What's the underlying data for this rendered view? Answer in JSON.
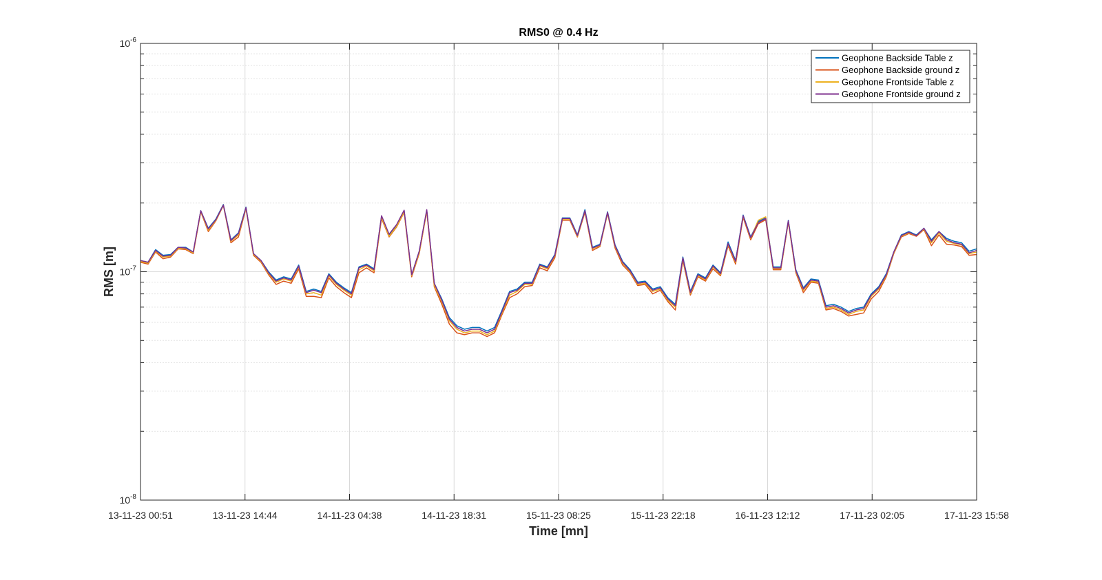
{
  "chart_data": {
    "type": "line",
    "title": "RMS0 @ 0.4 Hz",
    "xlabel": "Time [mn]",
    "ylabel": "RMS [m]",
    "yscale": "log",
    "ylim": [
      1e-08,
      1e-06
    ],
    "y_tick_labels": [
      {
        "base": "10",
        "exp": "-8",
        "value": 1e-08
      },
      {
        "base": "10",
        "exp": "-7",
        "value": 1e-07
      },
      {
        "base": "10",
        "exp": "-6",
        "value": 1e-06
      }
    ],
    "x_tick_labels": [
      "13-11-23 00:51",
      "13-11-23 14:44",
      "14-11-23 04:38",
      "14-11-23 18:31",
      "15-11-23 08:25",
      "15-11-23 22:18",
      "16-11-23 12:12",
      "17-11-23 02:05",
      "17-11-23 15:58"
    ],
    "grid": true,
    "legend_position": "top-right",
    "series": [
      {
        "name": "Geophone Backside Table z",
        "color": "#0072BD",
        "values": [
          1.12e-07,
          1.1e-07,
          1.25e-07,
          1.18e-07,
          1.19e-07,
          1.28e-07,
          1.28e-07,
          1.22e-07,
          1.85e-07,
          1.55e-07,
          1.7e-07,
          1.97e-07,
          1.38e-07,
          1.48e-07,
          1.92e-07,
          1.2e-07,
          1.12e-07,
          1e-07,
          9.2e-08,
          9.5e-08,
          9.3e-08,
          1.07e-07,
          8.2e-08,
          8.4e-08,
          8.2e-08,
          9.8e-08,
          9e-08,
          8.5e-08,
          8.1e-08,
          1.05e-07,
          1.08e-07,
          1.03e-07,
          1.75e-07,
          1.45e-07,
          1.6e-07,
          1.85e-07,
          9.7e-08,
          1.23e-07,
          1.86e-07,
          8.9e-08,
          7.6e-08,
          6.3e-08,
          5.8e-08,
          5.6e-08,
          5.7e-08,
          5.7e-08,
          5.5e-08,
          5.7e-08,
          6.8e-08,
          8.2e-08,
          8.4e-08,
          9e-08,
          9e-08,
          1.08e-07,
          1.05e-07,
          1.19e-07,
          1.72e-07,
          1.72e-07,
          1.45e-07,
          1.87e-07,
          1.28e-07,
          1.32e-07,
          1.83e-07,
          1.31e-07,
          1.11e-07,
          1.02e-07,
          9e-08,
          9.1e-08,
          8.4e-08,
          8.6e-08,
          7.7e-08,
          7.2e-08,
          1.16e-07,
          8.2e-08,
          9.8e-08,
          9.4e-08,
          1.07e-07,
          9.9e-08,
          1.35e-07,
          1.12e-07,
          1.77e-07,
          1.42e-07,
          1.66e-07,
          1.72e-07,
          1.05e-07,
          1.05e-07,
          1.68e-07,
          1.02e-07,
          8.5e-08,
          9.3e-08,
          9.2e-08,
          7.1e-08,
          7.2e-08,
          7e-08,
          6.7e-08,
          6.9e-08,
          7e-08,
          8e-08,
          8.6e-08,
          9.8e-08,
          1.22e-07,
          1.45e-07,
          1.5e-07,
          1.45e-07,
          1.55e-07,
          1.38e-07,
          1.5e-07,
          1.4e-07,
          1.36e-07,
          1.34e-07,
          1.23e-07,
          1.26e-07
        ]
      },
      {
        "name": "Geophone Backside ground z",
        "color": "#D95319",
        "values": [
          1.1e-07,
          1.08e-07,
          1.22e-07,
          1.14e-07,
          1.16e-07,
          1.26e-07,
          1.25e-07,
          1.2e-07,
          1.83e-07,
          1.5e-07,
          1.67e-07,
          1.95e-07,
          1.34e-07,
          1.42e-07,
          1.89e-07,
          1.18e-07,
          1.1e-07,
          9.7e-08,
          8.8e-08,
          9.1e-08,
          8.9e-08,
          1.03e-07,
          7.8e-08,
          7.8e-08,
          7.7e-08,
          9.4e-08,
          8.6e-08,
          8.1e-08,
          7.7e-08,
          9.9e-08,
          1.04e-07,
          9.9e-08,
          1.71e-07,
          1.42e-07,
          1.57e-07,
          1.82e-07,
          9.5e-08,
          1.2e-07,
          1.84e-07,
          8.6e-08,
          7.2e-08,
          5.9e-08,
          5.4e-08,
          5.3e-08,
          5.4e-08,
          5.4e-08,
          5.2e-08,
          5.4e-08,
          6.5e-08,
          7.7e-08,
          8e-08,
          8.6e-08,
          8.7e-08,
          1.04e-07,
          1.01e-07,
          1.15e-07,
          1.68e-07,
          1.68e-07,
          1.42e-07,
          1.82e-07,
          1.24e-07,
          1.29e-07,
          1.8e-07,
          1.27e-07,
          1.07e-07,
          9.9e-08,
          8.7e-08,
          8.8e-08,
          8e-08,
          8.3e-08,
          7.4e-08,
          6.8e-08,
          1.12e-07,
          7.9e-08,
          9.5e-08,
          9.1e-08,
          1.03e-07,
          9.6e-08,
          1.3e-07,
          1.08e-07,
          1.73e-07,
          1.38e-07,
          1.62e-07,
          1.69e-07,
          1.02e-07,
          1.02e-07,
          1.65e-07,
          9.9e-08,
          8.1e-08,
          9e-08,
          8.9e-08,
          6.8e-08,
          6.9e-08,
          6.7e-08,
          6.4e-08,
          6.5e-08,
          6.6e-08,
          7.6e-08,
          8.2e-08,
          9.5e-08,
          1.2e-07,
          1.42e-07,
          1.47e-07,
          1.43e-07,
          1.53e-07,
          1.3e-07,
          1.45e-07,
          1.32e-07,
          1.31e-07,
          1.29e-07,
          1.18e-07,
          1.19e-07
        ]
      },
      {
        "name": "Geophone Frontside Table z",
        "color": "#EDB120",
        "values": [
          1.11e-07,
          1.09e-07,
          1.23e-07,
          1.16e-07,
          1.17e-07,
          1.27e-07,
          1.26e-07,
          1.21e-07,
          1.84e-07,
          1.52e-07,
          1.68e-07,
          1.96e-07,
          1.36e-07,
          1.45e-07,
          1.9e-07,
          1.19e-07,
          1.11e-07,
          9.8e-08,
          9e-08,
          9.3e-08,
          9.1e-08,
          1.05e-07,
          8e-08,
          8.1e-08,
          7.9e-08,
          9.6e-08,
          8.8e-08,
          8.3e-08,
          7.9e-08,
          1.02e-07,
          1.06e-07,
          1.01e-07,
          1.73e-07,
          1.43e-07,
          1.58e-07,
          1.83e-07,
          9.6e-08,
          1.21e-07,
          1.85e-07,
          8.7e-08,
          7.4e-08,
          6.1e-08,
          5.6e-08,
          5.4e-08,
          5.5e-08,
          5.5e-08,
          5.3e-08,
          5.5e-08,
          6.6e-08,
          7.9e-08,
          8.2e-08,
          8.8e-08,
          8.8e-08,
          1.06e-07,
          1.03e-07,
          1.17e-07,
          1.7e-07,
          1.7e-07,
          1.43e-07,
          1.84e-07,
          1.26e-07,
          1.3e-07,
          1.81e-07,
          1.29e-07,
          1.09e-07,
          1e-07,
          8.8e-08,
          8.9e-08,
          8.2e-08,
          8.4e-08,
          7.5e-08,
          7e-08,
          1.14e-07,
          8e-08,
          9.6e-08,
          9.2e-08,
          1.05e-07,
          9.7e-08,
          1.32e-07,
          1.1e-07,
          1.75e-07,
          1.4e-07,
          1.68e-07,
          1.74e-07,
          1.03e-07,
          1.03e-07,
          1.66e-07,
          1e-07,
          8.3e-08,
          9.1e-08,
          9e-08,
          6.9e-08,
          7e-08,
          6.8e-08,
          6.5e-08,
          6.7e-08,
          6.8e-08,
          7.8e-08,
          8.4e-08,
          9.6e-08,
          1.21e-07,
          1.43e-07,
          1.48e-07,
          1.44e-07,
          1.54e-07,
          1.34e-07,
          1.48e-07,
          1.36e-07,
          1.33e-07,
          1.31e-07,
          1.2e-07,
          1.22e-07
        ]
      },
      {
        "name": "Geophone Frontside ground z",
        "color": "#7E2F8E",
        "values": [
          1.12e-07,
          1.1e-07,
          1.24e-07,
          1.17e-07,
          1.18e-07,
          1.28e-07,
          1.27e-07,
          1.22e-07,
          1.85e-07,
          1.54e-07,
          1.69e-07,
          1.96e-07,
          1.37e-07,
          1.47e-07,
          1.91e-07,
          1.2e-07,
          1.12e-07,
          9.9e-08,
          9.1e-08,
          9.4e-08,
          9.2e-08,
          1.06e-07,
          8.1e-08,
          8.3e-08,
          8.1e-08,
          9.7e-08,
          8.9e-08,
          8.4e-08,
          8e-08,
          1.04e-07,
          1.07e-07,
          1.02e-07,
          1.76e-07,
          1.46e-07,
          1.61e-07,
          1.86e-07,
          9.7e-08,
          1.23e-07,
          1.87e-07,
          8.9e-08,
          7.5e-08,
          6.2e-08,
          5.7e-08,
          5.5e-08,
          5.6e-08,
          5.6e-08,
          5.4e-08,
          5.6e-08,
          6.7e-08,
          8.1e-08,
          8.3e-08,
          8.9e-08,
          8.9e-08,
          1.07e-07,
          1.04e-07,
          1.18e-07,
          1.71e-07,
          1.71e-07,
          1.44e-07,
          1.85e-07,
          1.27e-07,
          1.31e-07,
          1.82e-07,
          1.3e-07,
          1.1e-07,
          1.01e-07,
          8.9e-08,
          9e-08,
          8.3e-08,
          8.5e-08,
          7.6e-08,
          7.1e-08,
          1.15e-07,
          8.1e-08,
          9.7e-08,
          9.3e-08,
          1.06e-07,
          9.8e-08,
          1.33e-07,
          1.11e-07,
          1.76e-07,
          1.41e-07,
          1.64e-07,
          1.71e-07,
          1.04e-07,
          1.04e-07,
          1.67e-07,
          1.01e-07,
          8.4e-08,
          9.2e-08,
          9.1e-08,
          7e-08,
          7.1e-08,
          6.9e-08,
          6.6e-08,
          6.8e-08,
          6.9e-08,
          7.9e-08,
          8.5e-08,
          9.7e-08,
          1.22e-07,
          1.44e-07,
          1.49e-07,
          1.44e-07,
          1.55e-07,
          1.36e-07,
          1.5e-07,
          1.38e-07,
          1.34e-07,
          1.32e-07,
          1.21e-07,
          1.24e-07
        ]
      }
    ]
  }
}
